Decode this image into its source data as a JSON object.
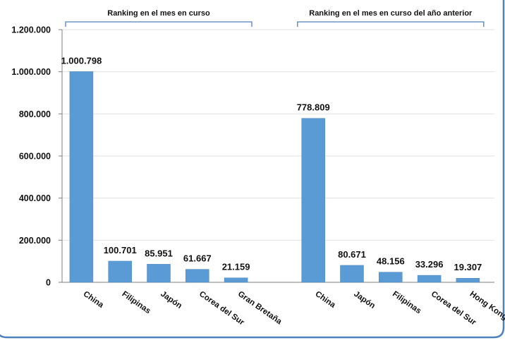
{
  "chart_data": {
    "type": "bar",
    "colors": {
      "bar": "#5b9bd5",
      "bar_stroke": "#4a86c0",
      "frame": "#4f81bd",
      "grid": "#e2e2e2",
      "axis": "#808080",
      "bracket": "#4f81bd"
    },
    "y_axis": {
      "ylim": [
        0,
        1200000
      ],
      "ticks": [
        0,
        200000,
        400000,
        600000,
        800000,
        1000000,
        1200000
      ],
      "tick_labels": [
        "0",
        "200.000",
        "400.000",
        "600.000",
        "800.000",
        "1.000.000",
        "1.200.000"
      ],
      "grid": true
    },
    "groups": [
      {
        "title": "Ranking en el mes en curso",
        "categories": [
          "China",
          "Filipinas",
          "Japón",
          "Corea del Sur",
          "Gran Bretaña"
        ],
        "values": [
          1000798,
          100701,
          85951,
          61667,
          21159
        ],
        "value_labels": [
          "1.000.798",
          "100.701",
          "85.951",
          "61.667",
          "21.159"
        ]
      },
      {
        "title": "Ranking en el mes en curso del año anterior",
        "categories": [
          "China",
          "Japón",
          "Filipinas",
          "Corea del Sur",
          "Hong Kong"
        ],
        "values": [
          778809,
          80671,
          48156,
          33296,
          19307
        ],
        "value_labels": [
          "778.809",
          "80.671",
          "48.156",
          "33.296",
          "19.307"
        ]
      }
    ]
  }
}
